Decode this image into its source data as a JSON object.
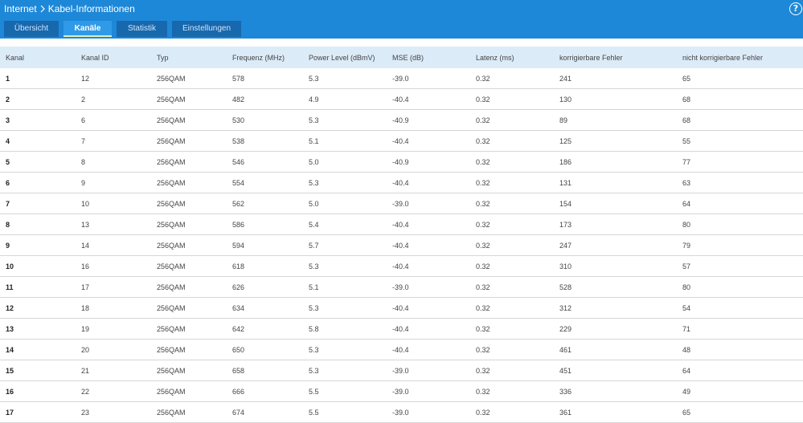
{
  "header": {
    "breadcrumb": [
      "Internet",
      "Kabel-Informationen"
    ],
    "help": "?"
  },
  "tabs": [
    "Übersicht",
    "Kanäle",
    "Statistik",
    "Einstellungen"
  ],
  "table": {
    "columns": [
      "Kanal",
      "Kanal ID",
      "Typ",
      "Frequenz (MHz)",
      "Power Level (dBmV)",
      "MSE (dB)",
      "Latenz (ms)",
      "korrigierbare Fehler",
      "nicht korrigierbare Fehler"
    ],
    "rows": [
      [
        "1",
        "12",
        "256QAM",
        "578",
        "5.3",
        "-39.0",
        "0.32",
        "241",
        "65"
      ],
      [
        "2",
        "2",
        "256QAM",
        "482",
        "4.9",
        "-40.4",
        "0.32",
        "130",
        "68"
      ],
      [
        "3",
        "6",
        "256QAM",
        "530",
        "5.3",
        "-40.9",
        "0.32",
        "89",
        "68"
      ],
      [
        "4",
        "7",
        "256QAM",
        "538",
        "5.1",
        "-40.4",
        "0.32",
        "125",
        "55"
      ],
      [
        "5",
        "8",
        "256QAM",
        "546",
        "5.0",
        "-40.9",
        "0.32",
        "186",
        "77"
      ],
      [
        "6",
        "9",
        "256QAM",
        "554",
        "5.3",
        "-40.4",
        "0.32",
        "131",
        "63"
      ],
      [
        "7",
        "10",
        "256QAM",
        "562",
        "5.0",
        "-39.0",
        "0.32",
        "154",
        "64"
      ],
      [
        "8",
        "13",
        "256QAM",
        "586",
        "5.4",
        "-40.4",
        "0.32",
        "173",
        "80"
      ],
      [
        "9",
        "14",
        "256QAM",
        "594",
        "5.7",
        "-40.4",
        "0.32",
        "247",
        "79"
      ],
      [
        "10",
        "16",
        "256QAM",
        "618",
        "5.3",
        "-40.4",
        "0.32",
        "310",
        "57"
      ],
      [
        "11",
        "17",
        "256QAM",
        "626",
        "5.1",
        "-39.0",
        "0.32",
        "528",
        "80"
      ],
      [
        "12",
        "18",
        "256QAM",
        "634",
        "5.3",
        "-40.4",
        "0.32",
        "312",
        "54"
      ],
      [
        "13",
        "19",
        "256QAM",
        "642",
        "5.8",
        "-40.4",
        "0.32",
        "229",
        "71"
      ],
      [
        "14",
        "20",
        "256QAM",
        "650",
        "5.3",
        "-40.4",
        "0.32",
        "461",
        "48"
      ],
      [
        "15",
        "21",
        "256QAM",
        "658",
        "5.3",
        "-39.0",
        "0.32",
        "451",
        "64"
      ],
      [
        "16",
        "22",
        "256QAM",
        "666",
        "5.5",
        "-39.0",
        "0.32",
        "336",
        "49"
      ],
      [
        "17",
        "23",
        "256QAM",
        "674",
        "5.5",
        "-39.0",
        "0.32",
        "361",
        "65"
      ]
    ]
  }
}
